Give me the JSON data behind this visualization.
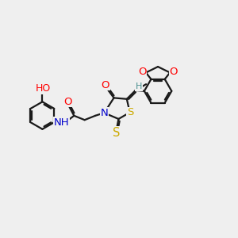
{
  "bg_color": "#efefef",
  "bond_color": "#1a1a1a",
  "bond_width": 1.6,
  "atom_colors": {
    "O": "#ff0000",
    "N": "#0000cc",
    "S": "#ccaa00",
    "H": "#4a9090",
    "C": "#1a1a1a"
  },
  "font_size": 8.5,
  "figsize": [
    3.0,
    3.0
  ],
  "dpi": 100
}
